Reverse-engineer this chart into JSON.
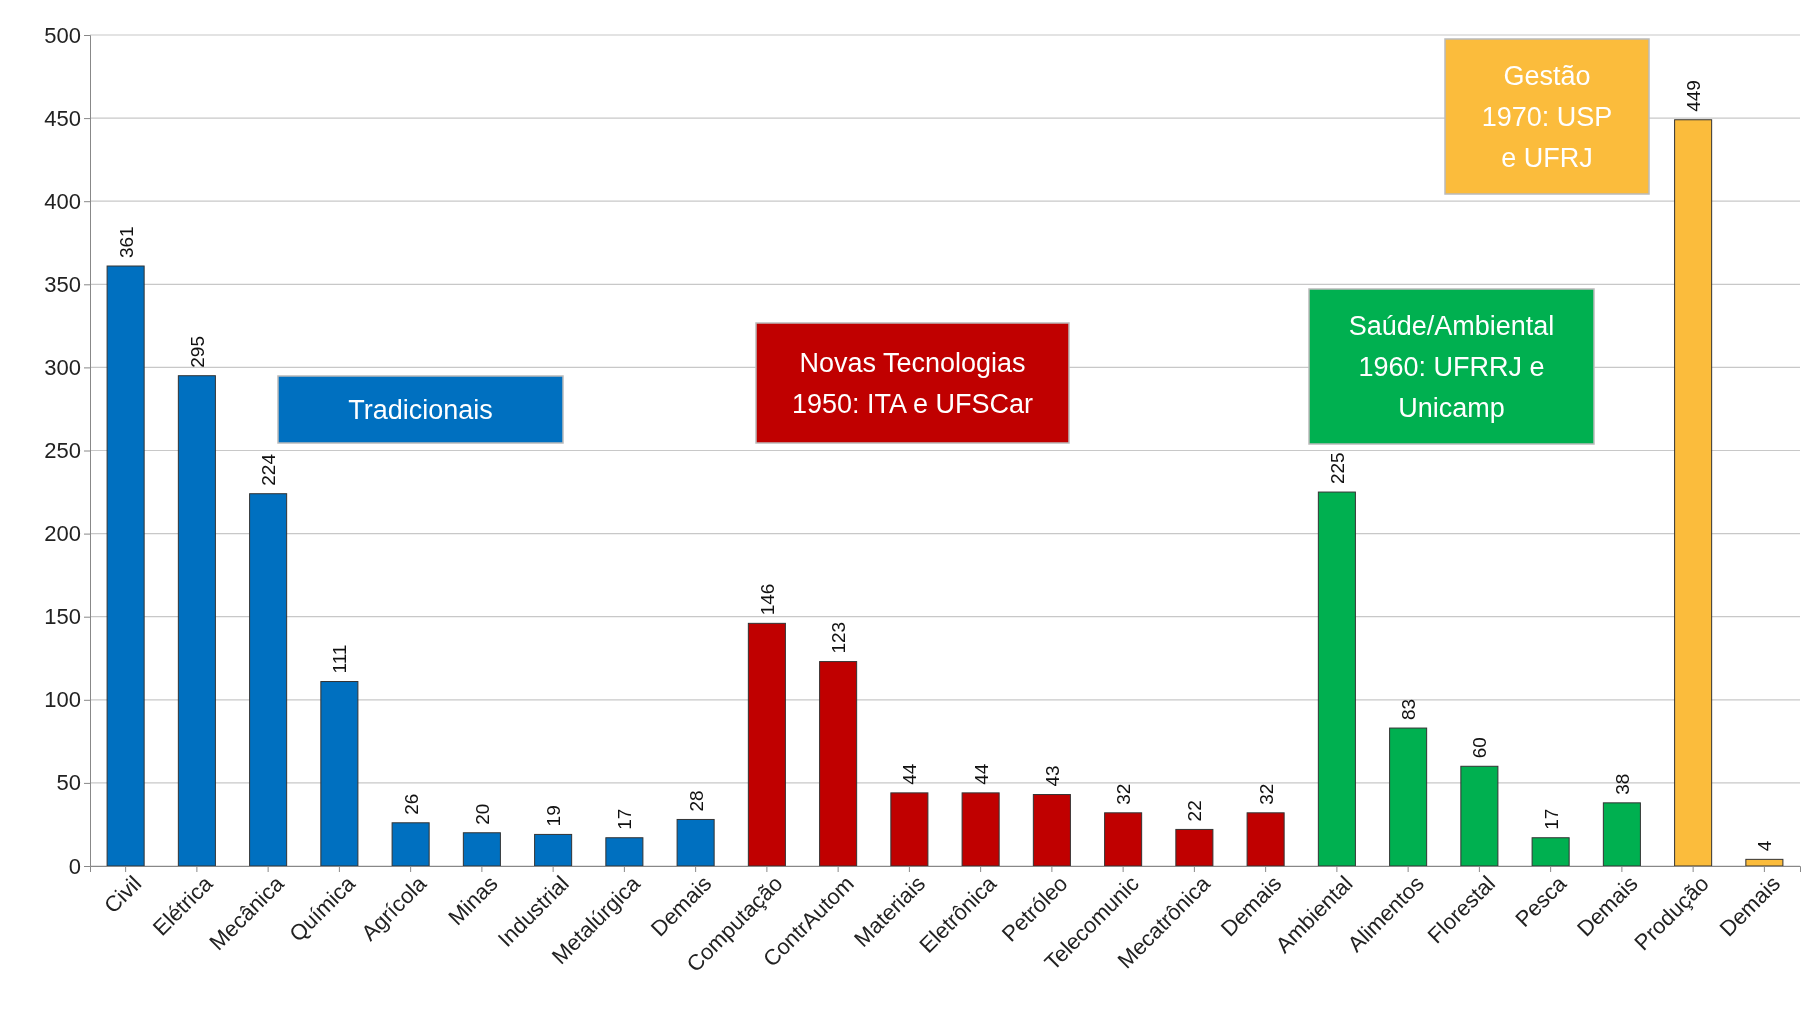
{
  "chart_data": {
    "type": "bar",
    "categories": [
      "Civil",
      "Elétrica",
      "Mecânica",
      "Química",
      "Agrícola",
      "Minas",
      "Industrial",
      "Metalúrgica",
      "Demais",
      "Computação",
      "ContrAutom",
      "Materiais",
      "Eletrônica",
      "Petróleo",
      "Telecomunic",
      "Mecatrônica",
      "Demais",
      "Ambiental",
      "Alimentos",
      "Florestal",
      "Pesca",
      "Demais",
      "Produção",
      "Demais"
    ],
    "values": [
      361,
      295,
      224,
      111,
      26,
      20,
      19,
      17,
      28,
      146,
      123,
      44,
      44,
      43,
      32,
      22,
      32,
      225,
      83,
      60,
      17,
      38,
      449,
      4
    ],
    "colors": [
      "#0070c0",
      "#0070c0",
      "#0070c0",
      "#0070c0",
      "#0070c0",
      "#0070c0",
      "#0070c0",
      "#0070c0",
      "#0070c0",
      "#c00000",
      "#c00000",
      "#c00000",
      "#c00000",
      "#c00000",
      "#c00000",
      "#c00000",
      "#c00000",
      "#00b050",
      "#00b050",
      "#00b050",
      "#00b050",
      "#00b050",
      "#fbbc3c",
      "#fbbc3c"
    ],
    "ylim": [
      0,
      500
    ],
    "yticks": [
      0,
      50,
      100,
      150,
      200,
      250,
      300,
      350,
      400,
      450,
      500
    ],
    "grid": "y",
    "data_labels": true,
    "annotations": [
      "Tradicionais",
      "Novas Tecnologias\n1950: ITA e UFSCar",
      "Saúde/Ambiental\n1960: UFRRJ e\nUnicamp",
      "Gestão\n1970: USP\ne UFRJ"
    ]
  }
}
